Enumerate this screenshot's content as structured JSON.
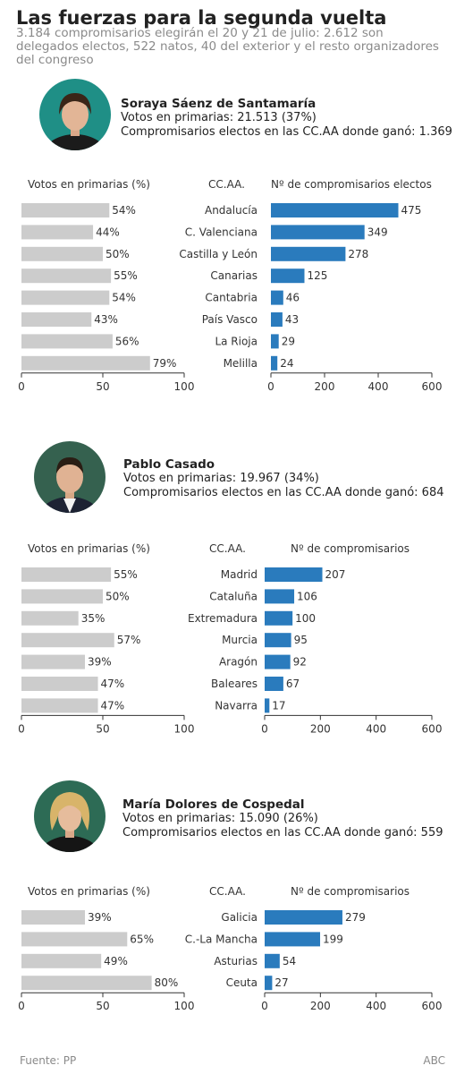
{
  "header": {
    "title": "Las fuerzas para la segunda vuelta",
    "subtitle": "3.184 compromisarios elegirán el 20 y 21 de julio: 2.612 son delegados electos, 522 natos, 40 del exterior y el resto organizadores del congreso"
  },
  "colors": {
    "votes_bar": "#cccccc",
    "delegates_bar": "#2a7bbd",
    "axis": "#333333"
  },
  "candidates": [
    {
      "name": "Soraya Sáenz de Santamaría",
      "votes": "Votos en primarias: 21.513 (37%)",
      "delegates": "Compromisarios electos en las CC.AA donde ganó: 1.369"
    },
    {
      "name": "Pablo Casado",
      "votes": "Votos en primarias: 19.967 (34%)",
      "delegates": "Compromisarios electos en las CC.AA donde ganó: 684"
    },
    {
      "name": "María Dolores de Cospedal",
      "votes": "Votos en primarias: 15.090 (26%)",
      "delegates": "Compromisarios electos en las CC.AA donde ganó: 559"
    }
  ],
  "chart_data": [
    {
      "type": "bar",
      "orientation": "horizontal",
      "left_title": "Votos en primarias (%)",
      "category_title": "CC.AA.",
      "right_title": "Nº de compromisarios electos",
      "categories": [
        "Andalucía",
        "C. Valenciana",
        "Castilla y León",
        "Canarias",
        "Cantabria",
        "País Vasco",
        "La Rioja",
        "Melilla"
      ],
      "series": [
        {
          "values": [
            54,
            44,
            50,
            55,
            54,
            43,
            56,
            79
          ],
          "unit": "%",
          "xlim": [
            0,
            100
          ],
          "ticks": [
            0,
            50,
            100
          ]
        },
        {
          "values": [
            475,
            349,
            278,
            125,
            46,
            43,
            29,
            24
          ],
          "xlim": [
            0,
            600
          ],
          "ticks": [
            0,
            200,
            400,
            600
          ]
        }
      ]
    },
    {
      "type": "bar",
      "orientation": "horizontal",
      "left_title": "Votos en primarias (%)",
      "category_title": "CC.AA.",
      "right_title": "Nº de compromisarios",
      "categories": [
        "Madrid",
        "Cataluña",
        "Extremadura",
        "Murcia",
        "Aragón",
        "Baleares",
        "Navarra"
      ],
      "series": [
        {
          "values": [
            55,
            50,
            35,
            57,
            39,
            47,
            47
          ],
          "unit": "%",
          "xlim": [
            0,
            100
          ],
          "ticks": [
            0,
            50,
            100
          ]
        },
        {
          "values": [
            207,
            106,
            100,
            95,
            92,
            67,
            17
          ],
          "xlim": [
            0,
            600
          ],
          "ticks": [
            0,
            200,
            400,
            600
          ]
        }
      ]
    },
    {
      "type": "bar",
      "orientation": "horizontal",
      "left_title": "Votos en primarias (%)",
      "category_title": "CC.AA.",
      "right_title": "Nº de compromisarios",
      "categories": [
        "Galicia",
        "C.-La Mancha",
        "Asturias",
        "Ceuta"
      ],
      "series": [
        {
          "values": [
            39,
            65,
            49,
            80
          ],
          "unit": "%",
          "xlim": [
            0,
            100
          ],
          "ticks": [
            0,
            50,
            100
          ]
        },
        {
          "values": [
            279,
            199,
            54,
            27
          ],
          "xlim": [
            0,
            600
          ],
          "ticks": [
            0,
            200,
            400,
            600
          ]
        }
      ]
    }
  ],
  "footer": {
    "source": "Fuente: PP",
    "credit": "ABC"
  }
}
